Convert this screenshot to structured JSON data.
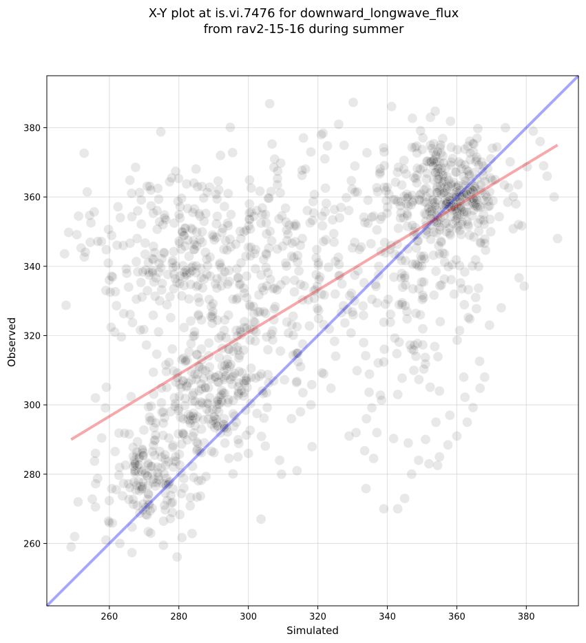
{
  "chart_data": {
    "type": "scatter",
    "title_line1": "X-Y plot at is.vi.7476 for downward_longwave_flux",
    "title_line2": "from rav2-15-16 during summer",
    "xlabel": "Simulated",
    "ylabel": "Observed",
    "xlim": [
      242,
      395
    ],
    "ylim": [
      242,
      395
    ],
    "xticks": [
      260,
      280,
      300,
      320,
      340,
      360,
      380
    ],
    "yticks": [
      260,
      280,
      300,
      320,
      340,
      360,
      380
    ],
    "grid": true,
    "point_color": "#000000",
    "point_opacity": 0.09,
    "identity_line": {
      "color": "#0000ff",
      "from": [
        242,
        242
      ],
      "to": [
        395,
        395
      ]
    },
    "fit_line": {
      "color": "#e8262a",
      "from": [
        249,
        290
      ],
      "to": [
        389,
        375
      ]
    },
    "clusters": [
      {
        "cx": 272,
        "cy": 279,
        "sx": 6,
        "sy": 8,
        "n": 160
      },
      {
        "cx": 287,
        "cy": 302,
        "sx": 8,
        "sy": 9,
        "n": 180
      },
      {
        "cx": 285,
        "cy": 345,
        "sx": 16,
        "sy": 13,
        "n": 300
      },
      {
        "cx": 300,
        "cy": 318,
        "sx": 13,
        "sy": 17,
        "n": 140
      },
      {
        "cx": 357,
        "cy": 361,
        "sx": 8,
        "sy": 8,
        "n": 340
      },
      {
        "cx": 348,
        "cy": 333,
        "sx": 12,
        "sy": 19,
        "n": 170
      },
      {
        "cx": 320,
        "cy": 345,
        "sx": 14,
        "sy": 16,
        "n": 100
      }
    ],
    "points": [
      [
        249,
        259
      ],
      [
        250,
        262
      ],
      [
        251,
        272
      ],
      [
        256,
        286
      ],
      [
        256,
        302
      ],
      [
        259,
        261
      ],
      [
        263,
        260
      ],
      [
        260,
        266
      ],
      [
        259,
        333
      ],
      [
        260,
        336
      ],
      [
        264,
        346
      ],
      [
        265,
        338
      ],
      [
        268,
        348
      ],
      [
        292,
        372
      ],
      [
        321,
        378
      ],
      [
        326,
        381
      ],
      [
        318,
        373
      ],
      [
        322,
        371
      ],
      [
        382,
        379
      ],
      [
        384,
        376
      ],
      [
        385,
        369
      ],
      [
        386,
        366
      ],
      [
        388,
        360
      ],
      [
        389,
        348
      ],
      [
        377,
        358
      ],
      [
        374,
        380
      ],
      [
        371,
        365
      ],
      [
        339,
        270
      ],
      [
        343,
        270
      ],
      [
        345,
        273
      ],
      [
        347,
        280
      ],
      [
        349,
        284
      ],
      [
        352,
        283
      ],
      [
        355,
        285
      ],
      [
        337,
        292
      ],
      [
        331,
        292
      ],
      [
        329,
        291
      ],
      [
        314,
        281
      ],
      [
        297,
        285
      ],
      [
        300,
        286
      ],
      [
        360,
        291
      ],
      [
        358,
        297
      ],
      [
        363,
        295
      ],
      [
        362,
        308
      ],
      [
        368,
        308
      ],
      [
        355,
        304
      ],
      [
        334,
        296
      ],
      [
        309,
        284
      ],
      [
        343,
        303
      ],
      [
        346,
        289
      ],
      [
        351,
        290
      ],
      [
        354,
        295
      ],
      [
        315,
        298
      ],
      [
        318,
        300
      ]
    ]
  }
}
